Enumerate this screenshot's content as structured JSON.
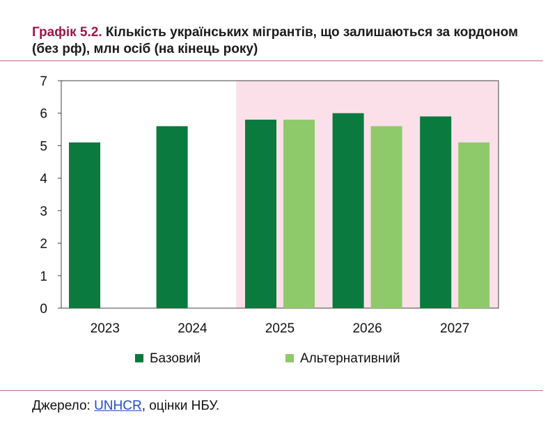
{
  "title": {
    "prefix": "Графік 5.2.",
    "text": "Кількість українських мігрантів, що залишаються за кордоном (без рф), млн осіб (на кінець року)"
  },
  "source": {
    "label": "Джерело:",
    "link_text": "UNHCR",
    "rest": ", оцінки НБУ."
  },
  "colors": {
    "base": "#0a7a3e",
    "alternative": "#8fca6a",
    "forecast_shade": "#fbe0ea",
    "title_accent": "#a0154a"
  },
  "chart_data": {
    "type": "bar",
    "categories": [
      "2023",
      "2024",
      "2025",
      "2026",
      "2027"
    ],
    "series": [
      {
        "name": "Базовий",
        "values": [
          5.1,
          5.6,
          5.8,
          6.0,
          5.9
        ]
      },
      {
        "name": "Альтернативний",
        "values": [
          null,
          null,
          5.8,
          5.6,
          5.1
        ]
      }
    ],
    "ylim": [
      0,
      7
    ],
    "yticks": [
      0,
      1,
      2,
      3,
      4,
      5,
      6,
      7
    ],
    "shaded_categories": [
      "2025",
      "2026",
      "2027"
    ],
    "grid": false,
    "legend_position": "bottom"
  }
}
